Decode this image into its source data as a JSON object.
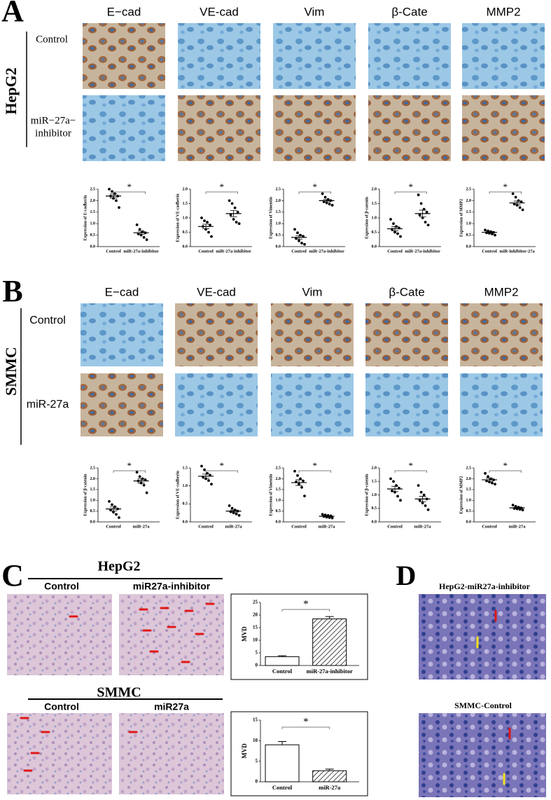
{
  "panel_a": {
    "label": "A",
    "cell_line": "HepG2",
    "markers": [
      "E−cad",
      "VE-cad",
      "Vim",
      "β-Cate",
      "MMP2"
    ],
    "row_1": "Control",
    "row_2": [
      "miR−27a−",
      "inhibitor"
    ]
  },
  "panel_b": {
    "label": "B",
    "cell_line": "SMMC",
    "markers": [
      "E−cad",
      "VE-cad",
      "Vim",
      "β-Cate",
      "MMP2"
    ],
    "row_1": "Control",
    "row_2": "miR-27a"
  },
  "panel_c": {
    "label": "C",
    "groups": [
      {
        "title": "HepG2",
        "columns": [
          "Control",
          "miR27a-inhibitor"
        ]
      },
      {
        "title": "SMMC",
        "columns": [
          "Control",
          "miR27a"
        ]
      }
    ]
  },
  "panel_d": {
    "label": "D",
    "captions": [
      "HepG2-miR27a-inhibitor",
      "SMMC-Control"
    ]
  },
  "chart_data": [
    {
      "type": "dot",
      "y_label": "Expression of E-cadherin",
      "categories": [
        "Control",
        "miR-27a-inhibitor"
      ],
      "values": [
        [
          2.5,
          2.4,
          2.3,
          2.2,
          2.2,
          2.1,
          2.0,
          1.7
        ],
        [
          0.95,
          0.75,
          0.65,
          0.6,
          0.55,
          0.5,
          0.4,
          0.3
        ]
      ],
      "means": [
        2.2,
        0.6
      ],
      "errors": [
        0.09,
        0.07
      ],
      "ylim": [
        0,
        2.5
      ],
      "yticks": [
        {
          "value": 0,
          "label": "0.0"
        },
        0.5,
        {
          "value": 1,
          "label": "1.0"
        },
        1.5,
        {
          "value": 2,
          "label": "2.0"
        },
        2.5
      ],
      "significance": "*"
    },
    {
      "type": "dot",
      "y_label": "Expression of VE-cadherin",
      "categories": [
        "Control",
        "miR-27a-inhibitor"
      ],
      "values": [
        [
          1.0,
          0.9,
          0.85,
          0.75,
          0.7,
          0.6,
          0.5,
          0.35
        ],
        [
          1.6,
          1.5,
          1.35,
          1.2,
          1.1,
          0.95,
          0.85,
          0.8
        ]
      ],
      "means": [
        0.7,
        1.15
      ],
      "errors": [
        0.08,
        0.11
      ],
      "ylim": [
        0,
        2
      ],
      "yticks": [
        {
          "value": 0,
          "label": "0.0"
        },
        0.5,
        {
          "value": 1,
          "label": "1.0"
        },
        1.5,
        {
          "value": 2,
          "label": "2.0"
        }
      ],
      "significance": "*"
    },
    {
      "type": "dot",
      "y_label": "Expression of Vimentin",
      "categories": [
        "Control",
        "miR-27a-inhibitor"
      ],
      "values": [
        [
          0.75,
          0.6,
          0.5,
          0.45,
          0.35,
          0.25,
          0.15,
          0.1
        ],
        [
          2.3,
          2.15,
          2.05,
          2.0,
          1.95,
          1.9,
          1.85,
          1.8
        ]
      ],
      "means": [
        0.4,
        2.0
      ],
      "errors": [
        0.08,
        0.05
      ],
      "ylim": [
        0,
        2.5
      ],
      "yticks": [
        {
          "value": 0,
          "label": "0.0"
        },
        0.5,
        {
          "value": 1,
          "label": "1.0"
        },
        1.5,
        {
          "value": 2,
          "label": "2.0"
        },
        2.5
      ],
      "significance": "*"
    },
    {
      "type": "dot",
      "y_label": "Expression of β-catenin",
      "categories": [
        "Control",
        "miR-27a-inhibitor"
      ],
      "values": [
        [
          0.95,
          0.8,
          0.7,
          0.65,
          0.6,
          0.5,
          0.45,
          0.35
        ],
        [
          1.8,
          1.5,
          1.3,
          1.2,
          1.1,
          1.0,
          0.85,
          0.75
        ]
      ],
      "means": [
        0.62,
        1.15
      ],
      "errors": [
        0.07,
        0.12
      ],
      "ylim": [
        0,
        2
      ],
      "yticks": [
        {
          "value": 0,
          "label": "0.0"
        },
        0.5,
        {
          "value": 1,
          "label": "1.0"
        },
        1.5,
        {
          "value": 2,
          "label": "2.0"
        }
      ],
      "significance": "*"
    },
    {
      "type": "dot",
      "y_label": "Expression of MMP2",
      "categories": [
        "Control",
        "miR-inhibitor-27a"
      ],
      "values": [
        [
          0.72,
          0.68,
          0.65,
          0.62,
          0.6,
          0.58,
          0.55,
          0.5
        ],
        [
          2.3,
          2.15,
          2.0,
          1.95,
          1.85,
          1.8,
          1.7,
          1.6
        ]
      ],
      "means": [
        0.62,
        1.9
      ],
      "errors": [
        0.03,
        0.08
      ],
      "ylim": [
        0,
        2.5
      ],
      "yticks": [
        {
          "value": 0,
          "label": "0.0"
        },
        0.5,
        {
          "value": 1,
          "label": "1.0"
        },
        1.5,
        {
          "value": 2,
          "label": "2.0"
        },
        2.5
      ],
      "significance": "*"
    },
    {
      "type": "dot",
      "y_label": "Expression of β-catenin",
      "categories": [
        "Control",
        "miR-27a"
      ],
      "values": [
        [
          0.95,
          0.8,
          0.7,
          0.6,
          0.55,
          0.45,
          0.35,
          0.2
        ],
        [
          2.3,
          2.1,
          2.0,
          1.95,
          1.9,
          1.8,
          1.7,
          1.35
        ]
      ],
      "means": [
        0.6,
        1.9
      ],
      "errors": [
        0.09,
        0.1
      ],
      "ylim": [
        0,
        2.5
      ],
      "yticks": [
        {
          "value": 0,
          "label": "0.0"
        },
        0.5,
        {
          "value": 1,
          "label": "1.0"
        },
        1.5,
        {
          "value": 2,
          "label": "2.0"
        },
        2.5
      ],
      "significance": "*"
    },
    {
      "type": "dot",
      "y_label": "Expression of VE-cadherin",
      "categories": [
        "Control",
        "miR-27a"
      ],
      "values": [
        [
          1.55,
          1.45,
          1.35,
          1.3,
          1.25,
          1.2,
          1.15,
          1.05
        ],
        [
          0.45,
          0.38,
          0.33,
          0.3,
          0.28,
          0.25,
          0.22,
          0.18
        ]
      ],
      "means": [
        1.27,
        0.3
      ],
      "errors": [
        0.06,
        0.03
      ],
      "ylim": [
        0,
        1.5
      ],
      "yticks": [
        {
          "value": 0,
          "label": "0.0"
        },
        0.5,
        {
          "value": 1,
          "label": "1.0"
        },
        1.5
      ],
      "significance": "*"
    },
    {
      "type": "dot",
      "y_label": "Expression of Vimentin",
      "categories": [
        "Control",
        "miR-27a"
      ],
      "values": [
        [
          2.35,
          2.15,
          2.0,
          1.9,
          1.85,
          1.75,
          1.6,
          1.2
        ],
        [
          0.35,
          0.32,
          0.3,
          0.28,
          0.25,
          0.22,
          0.2,
          0.18
        ]
      ],
      "means": [
        1.82,
        0.26
      ],
      "errors": [
        0.13,
        0.02
      ],
      "ylim": [
        0,
        2.5
      ],
      "yticks": [
        {
          "value": 0,
          "label": "0.0"
        },
        0.5,
        {
          "value": 1,
          "label": "1.0"
        },
        1.5,
        {
          "value": 2,
          "label": "2.0"
        },
        2.5
      ],
      "significance": "*"
    },
    {
      "type": "dot",
      "y_label": "Expression of β-catenin",
      "categories": [
        "Control",
        "miR-27a"
      ],
      "values": [
        [
          1.6,
          1.5,
          1.35,
          1.25,
          1.15,
          1.1,
          0.95,
          0.8
        ],
        [
          1.35,
          1.1,
          1.0,
          0.85,
          0.8,
          0.7,
          0.6,
          0.45
        ]
      ],
      "means": [
        1.22,
        0.85
      ],
      "errors": [
        0.1,
        0.1
      ],
      "ylim": [
        0,
        2
      ],
      "yticks": [
        {
          "value": 0,
          "label": "0.0"
        },
        0.5,
        {
          "value": 1,
          "label": "1.0"
        },
        1.5,
        {
          "value": 2,
          "label": "2.0"
        }
      ],
      "significance": "*"
    },
    {
      "type": "dot",
      "y_label": "Expression of MMP2",
      "categories": [
        "Control",
        "miR-27a"
      ],
      "values": [
        [
          2.25,
          2.1,
          2.0,
          1.95,
          1.9,
          1.85,
          1.8,
          1.75
        ],
        [
          0.78,
          0.72,
          0.68,
          0.65,
          0.62,
          0.6,
          0.58,
          0.55
        ]
      ],
      "means": [
        1.95,
        0.65
      ],
      "errors": [
        0.07,
        0.03
      ],
      "ylim": [
        0,
        2.5
      ],
      "yticks": [
        {
          "value": 0,
          "label": "0.0"
        },
        0.5,
        {
          "value": 1,
          "label": "1.0"
        },
        1.5,
        {
          "value": 2,
          "label": "2.0"
        },
        2.5
      ],
      "significance": "*"
    },
    {
      "type": "bar",
      "y_label": "MVD",
      "categories": [
        "Control",
        "miR-27a-inhibitor"
      ],
      "values": [
        3.5,
        18.5
      ],
      "errors": [
        0.4,
        0.9
      ],
      "ylim": [
        0,
        25
      ],
      "yticks": [
        0,
        5,
        10,
        15,
        20,
        25
      ],
      "significance": "*"
    },
    {
      "type": "bar",
      "y_label": "MVD",
      "categories": [
        "Control",
        "miR-27a"
      ],
      "values": [
        9,
        2.7
      ],
      "errors": [
        0.8,
        0.4
      ],
      "ylim": [
        0,
        15
      ],
      "yticks": [
        0,
        5,
        10,
        15
      ],
      "significance": "*"
    }
  ]
}
